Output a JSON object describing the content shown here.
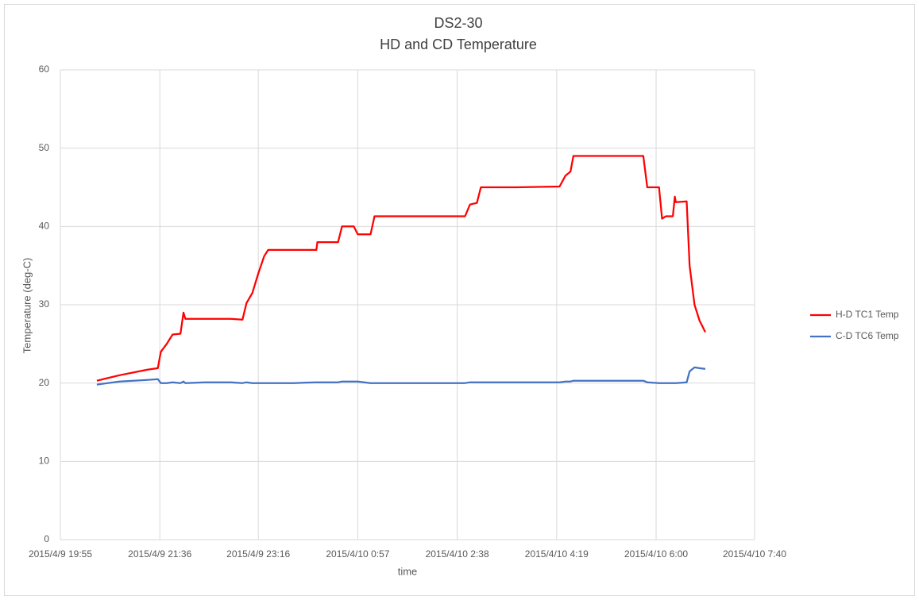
{
  "chart_data": {
    "type": "line",
    "title": "DS2-30",
    "subtitle": "HD and CD Temperature",
    "x_label": "time",
    "y_label": "Temperature (deg-C)",
    "x": [
      "2015/4/9 20:32",
      "2015/4/9 20:55",
      "2015/4/9 21:23",
      "2015/4/9 21:34",
      "2015/4/9 21:37",
      "2015/4/9 21:43",
      "2015/4/9 21:49",
      "2015/4/9 21:57",
      "2015/4/9 22:00",
      "2015/4/9 22:02",
      "2015/4/9 22:23",
      "2015/4/9 22:48",
      "2015/4/9 23:00",
      "2015/4/9 23:04",
      "2015/4/9 23:10",
      "2015/4/9 23:16",
      "2015/4/9 23:22",
      "2015/4/9 23:26",
      "2015/4/9 23:52",
      "2015/4/10 0:15",
      "2015/4/10 0:16",
      "2015/4/10 0:37",
      "2015/4/10 0:41",
      "2015/4/10 0:53",
      "2015/4/10 0:57",
      "2015/4/10 1:10",
      "2015/4/10 1:14",
      "2015/4/10 1:53",
      "2015/4/10 2:46",
      "2015/4/10 2:51",
      "2015/4/10 2:58",
      "2015/4/10 3:02",
      "2015/4/10 3:38",
      "2015/4/10 4:22",
      "2015/4/10 4:28",
      "2015/4/10 4:33",
      "2015/4/10 4:36",
      "2015/4/10 5:15",
      "2015/4/10 5:47",
      "2015/4/10 5:51",
      "2015/4/10 6:03",
      "2015/4/10 6:06",
      "2015/4/10 6:10",
      "2015/4/10 6:17",
      "2015/4/10 6:19",
      "2015/4/10 6:20",
      "2015/4/10 6:31",
      "2015/4/10 6:34",
      "2015/4/10 6:39",
      "2015/4/10 6:44",
      "2015/4/10 6:50"
    ],
    "series": [
      {
        "name": "H-D TC1 Temp",
        "color": "#ff0000",
        "values": [
          20.3,
          21.0,
          21.7,
          21.9,
          24,
          25,
          26.2,
          26.3,
          29,
          28.2,
          28.2,
          28.2,
          28.1,
          30.2,
          31.5,
          34,
          36.2,
          37,
          37,
          37,
          38,
          38,
          40,
          40,
          39,
          39,
          41.3,
          41.3,
          41.3,
          42.8,
          43,
          45,
          45,
          45.1,
          46.5,
          47,
          49,
          49,
          49,
          45,
          45,
          41,
          41.3,
          41.3,
          43.8,
          43.1,
          43.2,
          35,
          30,
          28,
          26.5
        ]
      },
      {
        "name": "C-D TC6 Temp",
        "color": "#4472c4",
        "values": [
          19.8,
          20.2,
          20.4,
          20.5,
          20.0,
          20.0,
          20.1,
          20.0,
          20.2,
          20.0,
          20.1,
          20.1,
          20.0,
          20.1,
          20.0,
          20.0,
          20.0,
          20.0,
          20.0,
          20.1,
          20.1,
          20.1,
          20.2,
          20.2,
          20.2,
          20.0,
          20.0,
          20.0,
          20.0,
          20.1,
          20.1,
          20.1,
          20.1,
          20.1,
          20.2,
          20.2,
          20.3,
          20.3,
          20.3,
          20.1,
          20.0,
          20.0,
          20.0,
          20.0,
          20.0,
          20.0,
          20.1,
          21.5,
          22.0,
          21.9,
          21.8
        ]
      }
    ],
    "xlim": [
      "2015/4/9 19:55",
      "2015/4/10 7:40"
    ],
    "xticks": [
      "2015/4/9 19:55",
      "2015/4/9 21:36",
      "2015/4/9 23:16",
      "2015/4/10 0:57",
      "2015/4/10 2:38",
      "2015/4/10 4:19",
      "2015/4/10 6:00",
      "2015/4/10 7:40"
    ],
    "ylim": [
      0,
      60
    ],
    "yticks": [
      0,
      10,
      20,
      30,
      40,
      50,
      60
    ],
    "grid": true,
    "legend": "right"
  }
}
